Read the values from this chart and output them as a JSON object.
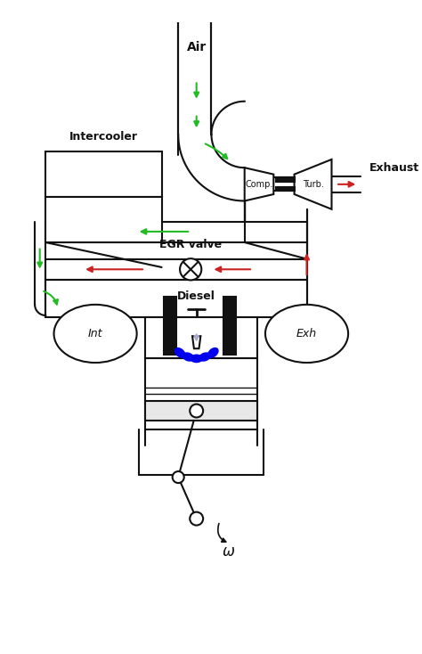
{
  "bg": "#ffffff",
  "green": "#22bb22",
  "red": "#cc2222",
  "blue": "#0000ee",
  "black": "#111111",
  "gray": "#aaaaaa",
  "lw": 1.5,
  "air_label": "Air",
  "ic_label": "Intercooler",
  "comp_label": "Comp.",
  "turb_label": "Turb.",
  "exh_label": "Exhaust",
  "egr_label": "EGR valve",
  "int_label": "Int",
  "exhm_label": "Exh",
  "diesel_label": "Diesel",
  "omega_label": "$\\omega$"
}
